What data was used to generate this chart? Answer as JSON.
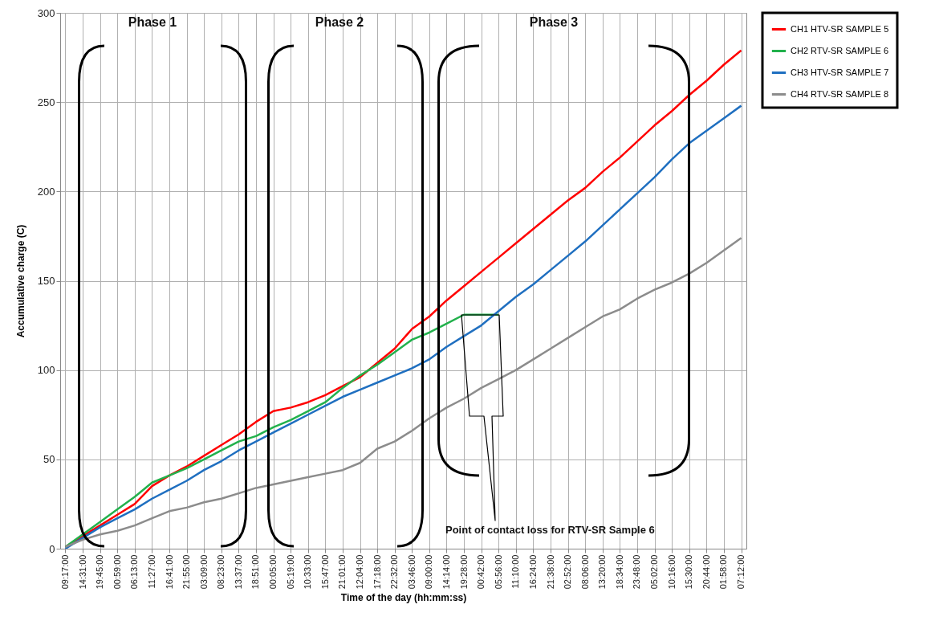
{
  "chart_data": {
    "type": "line",
    "xlabel": "Time of the day (hh:mm:ss)",
    "ylabel": "Accumulative charge (C)",
    "categories": [
      "09:17:00",
      "14:31:00",
      "19:45:00",
      "00:59:00",
      "06:13:00",
      "11:27:00",
      "16:41:00",
      "21:55:00",
      "03:09:00",
      "08:23:00",
      "13:37:00",
      "18:51:00",
      "00:05:00",
      "05:19:00",
      "10:33:00",
      "15:47:00",
      "21:01:00",
      "12:04:00",
      "17:18:00",
      "22:32:00",
      "03:46:00",
      "09:00:00",
      "14:14:00",
      "19:28:00",
      "00:42:00",
      "05:56:00",
      "11:10:00",
      "16:24:00",
      "21:38:00",
      "02:52:00",
      "08:06:00",
      "13:20:00",
      "18:34:00",
      "23:48:00",
      "05:02:00",
      "10:16:00",
      "15:30:00",
      "20:44:00",
      "01:58:00",
      "07:12:00"
    ],
    "series": [
      {
        "name": "CH1 HTV-SR SAMPLE 5",
        "color": "#ff0000",
        "values": [
          1,
          7,
          13,
          19,
          25,
          35,
          41,
          46,
          52,
          58,
          64,
          71,
          77,
          79,
          82,
          86,
          91,
          96,
          104,
          112,
          123,
          130,
          139,
          147,
          155,
          163,
          171,
          179,
          187,
          195,
          202,
          211,
          219,
          228,
          237,
          245,
          254,
          262,
          271,
          279
        ]
      },
      {
        "name": "CH2 RTV-SR SAMPLE 6",
        "color": "#22b14c",
        "values": [
          1,
          8,
          15,
          22,
          29,
          37,
          41,
          45,
          50,
          55,
          60,
          63,
          68,
          72,
          77,
          82,
          90,
          97,
          103,
          110,
          117,
          121,
          126,
          131,
          131,
          131,
          null,
          null,
          null,
          null,
          null,
          null,
          null,
          null,
          null,
          null,
          null,
          null,
          null,
          null
        ]
      },
      {
        "name": "CH3 HTV-SR SAMPLE 7",
        "color": "#1f6fc0",
        "values": [
          0,
          6,
          12,
          17,
          22,
          28,
          33,
          38,
          44,
          49,
          55,
          60,
          65,
          70,
          75,
          80,
          85,
          89,
          93,
          97,
          101,
          106,
          113,
          119,
          125,
          133,
          141,
          148,
          156,
          164,
          172,
          181,
          190,
          199,
          208,
          218,
          227,
          234,
          241,
          248
        ]
      },
      {
        "name": "CH4 RTV-SR SAMPLE 8",
        "color": "#8c8c8c",
        "values": [
          1,
          5,
          8,
          10,
          13,
          17,
          21,
          23,
          26,
          28,
          31,
          34,
          36,
          38,
          40,
          42,
          44,
          48,
          56,
          60,
          66,
          73,
          79,
          84,
          90,
          95,
          100,
          106,
          112,
          118,
          124,
          130,
          134,
          140,
          145,
          149,
          154,
          160,
          167,
          174
        ]
      }
    ],
    "ylim": [
      0,
      300
    ],
    "yticks": [
      0,
      50,
      100,
      150,
      200,
      250,
      300
    ],
    "grid": true,
    "legend": "top right",
    "annotations": [
      "Phase 1",
      "Phase 2",
      "Phase 3",
      "Point of contact loss for RTV-SR Sample 6"
    ]
  }
}
